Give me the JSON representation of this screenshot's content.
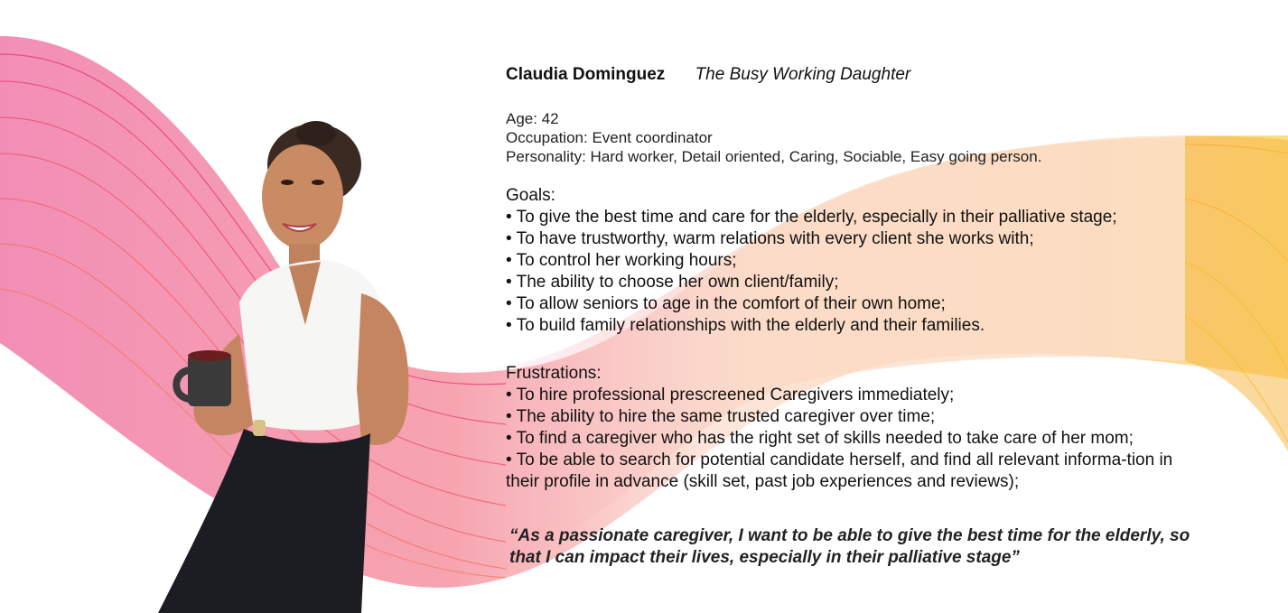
{
  "persona": {
    "name": "Claudia Dominguez",
    "role": "The Busy Working Daughter",
    "age": "Age: 42",
    "occupation": "Occupation: Event coordinator",
    "personality": "Personality: Hard worker, Detail oriented, Caring, Sociable, Easy going person."
  },
  "goals": {
    "heading": "Goals:",
    "items": [
      "• To give the best time and care for the elderly, especially in their palliative stage;",
      "• To have trustworthy, warm relations with every client she works with;",
      "• To control her working hours;",
      "• The ability to choose her own client/family;",
      "• To allow seniors to age in the comfort of their own home;",
      "• To build family relationships with the elderly and their families."
    ]
  },
  "frustrations": {
    "heading": "Frustrations:",
    "items": [
      "• To hire professional prescreened Caregivers immediately;",
      "• The ability to hire the same trusted caregiver over time;",
      "• To find a caregiver who has the right set of skills needed to take care of her mom;",
      "• To be able to search for potential candidate herself, and find all relevant informa-tion in their profile in advance (skill set, past job experiences and reviews);"
    ]
  },
  "quote": "“As a passionate caregiver, I want to be able to give the best time for the elderly, so that I can impact their lives, especially in their palliative stage”",
  "colors": {
    "wave_pink": "#e8327a",
    "wave_orange": "#f59a3a",
    "wave_yellow": "#f7c520",
    "wave_peach": "#fbd9c4"
  }
}
